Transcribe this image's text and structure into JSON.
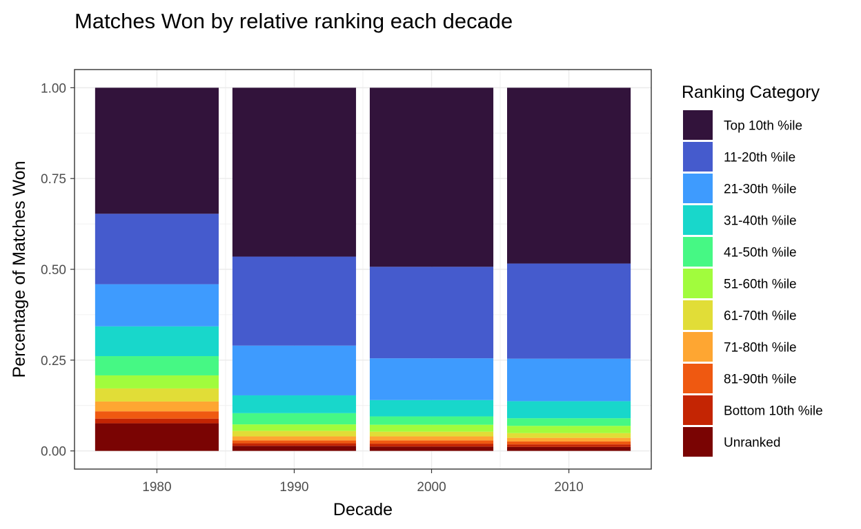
{
  "chart_data": {
    "type": "bar",
    "stacked": true,
    "title": "Matches Won by relative ranking each decade",
    "xlabel": "Decade",
    "ylabel": "Percentage of Matches Won",
    "categories": [
      "1980",
      "1990",
      "2000",
      "2010"
    ],
    "ylim": [
      -0.05,
      1.05
    ],
    "yticks": [
      0.0,
      0.25,
      0.5,
      0.75,
      1.0
    ],
    "ytick_labels": [
      "0.00",
      "0.25",
      "0.50",
      "0.75",
      "1.00"
    ],
    "grid": true,
    "legend": {
      "title": "Ranking Category",
      "position": "right"
    },
    "series": [
      {
        "name": "Top 10th %ile",
        "color": "#32133b",
        "values": [
          0.347,
          0.465,
          0.493,
          0.484
        ]
      },
      {
        "name": "11-20th %ile",
        "color": "#455bcd",
        "values": [
          0.194,
          0.245,
          0.252,
          0.262
        ]
      },
      {
        "name": "21-30th %ile",
        "color": "#3e9bfe",
        "values": [
          0.116,
          0.137,
          0.115,
          0.117
        ]
      },
      {
        "name": "31-40th %ile",
        "color": "#18d7cb",
        "values": [
          0.082,
          0.049,
          0.045,
          0.047
        ]
      },
      {
        "name": "41-50th %ile",
        "color": "#46f884",
        "values": [
          0.053,
          0.031,
          0.023,
          0.021
        ]
      },
      {
        "name": "51-60th %ile",
        "color": "#a1fc3d",
        "values": [
          0.036,
          0.018,
          0.019,
          0.02
        ]
      },
      {
        "name": "61-70th %ile",
        "color": "#e1dd37",
        "values": [
          0.036,
          0.015,
          0.013,
          0.013
        ]
      },
      {
        "name": "71-80th %ile",
        "color": "#fea632",
        "values": [
          0.027,
          0.011,
          0.011,
          0.01
        ]
      },
      {
        "name": "81-90th %ile",
        "color": "#ef5911",
        "values": [
          0.02,
          0.008,
          0.009,
          0.008
        ]
      },
      {
        "name": "Bottom 10th %ile",
        "color": "#c42503",
        "values": [
          0.013,
          0.007,
          0.008,
          0.007
        ]
      },
      {
        "name": "Unranked",
        "color": "#7a0403",
        "values": [
          0.076,
          0.014,
          0.012,
          0.011
        ]
      }
    ]
  }
}
